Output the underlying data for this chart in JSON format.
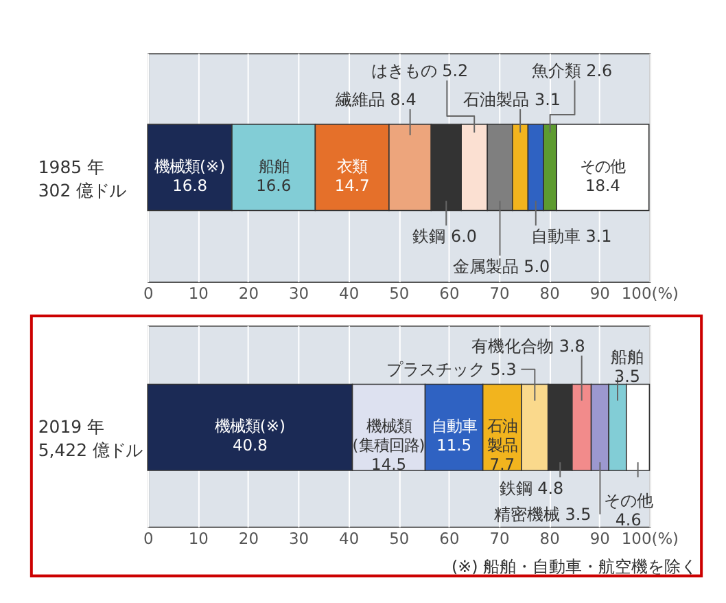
{
  "chart_data": [
    {
      "type": "bar",
      "orientation": "horizontal",
      "stacked": true,
      "categories": [
        "1985 年\n302 億ドル"
      ],
      "series": [
        {
          "name": "機械類(※)",
          "color": "#1b2a55",
          "values": [
            16.8
          ],
          "value_labels": [
            "16.8"
          ]
        },
        {
          "name": "船舶",
          "color": "#82cdd6",
          "values": [
            16.6
          ],
          "value_labels": [
            "16.6"
          ]
        },
        {
          "name": "衣類",
          "color": "#e5702a",
          "values": [
            14.7
          ],
          "value_labels": [
            "14.7"
          ]
        },
        {
          "name": "繊維品 8.4",
          "color": "#eda57c",
          "values": [
            8.4
          ],
          "value_labels": [
            null
          ]
        },
        {
          "name": "鉄鋼 6.0",
          "color": "#333333",
          "values": [
            6.0
          ],
          "value_labels": [
            null
          ]
        },
        {
          "name": "はきもの 5.2",
          "color": "#fbe0d2",
          "values": [
            5.2
          ],
          "value_labels": [
            null
          ]
        },
        {
          "name": "金属製品 5.0",
          "color": "#7f7f7f",
          "values": [
            5.0
          ],
          "value_labels": [
            null
          ]
        },
        {
          "name": "石油製品 3.1",
          "color": "#f2b41e",
          "values": [
            3.1
          ],
          "value_labels": [
            null
          ]
        },
        {
          "name": "自動車 3.1",
          "color": "#2f62c2",
          "values": [
            3.1
          ],
          "value_labels": [
            null
          ]
        },
        {
          "name": "魚介類 2.6",
          "color": "#5d9b30",
          "values": [
            2.6
          ],
          "value_labels": [
            null
          ]
        },
        {
          "name": "その他",
          "color": "#ffffff",
          "values": [
            18.4
          ],
          "value_labels": [
            "18.4"
          ]
        }
      ],
      "xlim": [
        0,
        100
      ],
      "xticks": [
        0,
        10,
        20,
        30,
        40,
        50,
        60,
        70,
        80,
        90,
        {
          "value": 100,
          "label": "100(%)"
        }
      ],
      "grid": "x"
    },
    {
      "type": "bar",
      "orientation": "horizontal",
      "stacked": true,
      "categories": [
        "2019 年\n5,422 億ドル"
      ],
      "series": [
        {
          "name": "機械類(※)",
          "color": "#1b2a55",
          "values": [
            40.8
          ],
          "value_labels": [
            "40.8"
          ]
        },
        {
          "name": "機械類(集積回路)",
          "color": "#dde1f0",
          "values": [
            14.5
          ],
          "value_labels": [
            "14.5"
          ]
        },
        {
          "name": "自動車",
          "color": "#2f62c2",
          "values": [
            11.5
          ],
          "value_labels": [
            "11.5"
          ]
        },
        {
          "name": "石油製品",
          "color": "#f2b41e",
          "values": [
            7.7
          ],
          "value_labels": [
            "7.7"
          ]
        },
        {
          "name": "プラスチック 5.3",
          "color": "#fad98c",
          "values": [
            5.3
          ],
          "value_labels": [
            null
          ]
        },
        {
          "name": "鉄鋼 4.8",
          "color": "#333333",
          "values": [
            4.8
          ],
          "value_labels": [
            null
          ]
        },
        {
          "name": "有機化合物 3.8",
          "color": "#f28b8b",
          "values": [
            3.8
          ],
          "value_labels": [
            null
          ]
        },
        {
          "name": "精密機械 3.5",
          "color": "#9c98cf",
          "values": [
            3.5
          ],
          "value_labels": [
            null
          ]
        },
        {
          "name": "船舶 3.5",
          "color": "#82cdd6",
          "values": [
            3.5
          ],
          "value_labels": [
            null
          ]
        },
        {
          "name": "その他 4.6",
          "color": "#ffffff",
          "values": [
            4.6
          ],
          "value_labels": [
            null
          ]
        }
      ],
      "xlim": [
        0,
        100
      ],
      "xticks": [
        0,
        10,
        20,
        30,
        40,
        50,
        60,
        70,
        80,
        90,
        {
          "value": 100,
          "label": "100(%)"
        }
      ],
      "grid": "x",
      "annotations": [
        "(※) 船舶・自動車・航空機を除く"
      ]
    }
  ]
}
